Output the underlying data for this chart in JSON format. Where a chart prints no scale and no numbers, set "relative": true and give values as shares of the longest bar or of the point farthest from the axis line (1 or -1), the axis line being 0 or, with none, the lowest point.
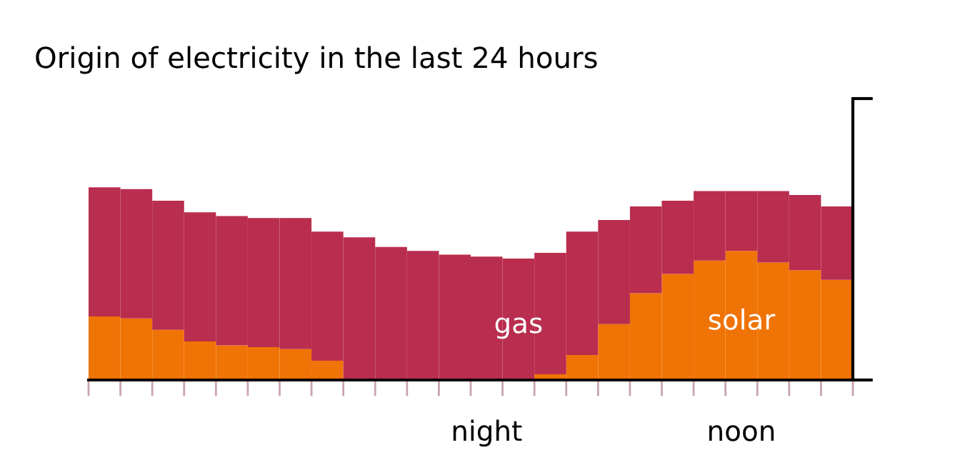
{
  "chart_data": {
    "type": "bar",
    "stacked": true,
    "relative": true,
    "title": "Origin of electricity in the last 24 hours",
    "categories": [
      null,
      null,
      null,
      null,
      null,
      null,
      null,
      null,
      null,
      null,
      null,
      null,
      "night",
      null,
      null,
      null,
      null,
      null,
      null,
      null,
      "noon",
      null,
      null,
      null
    ],
    "grid": false,
    "legend": false,
    "series": [
      {
        "name": "solar",
        "color": "#f07305",
        "values": [
          0.33,
          0.32,
          0.26,
          0.2,
          0.18,
          0.17,
          0.16,
          0.1,
          0,
          0,
          0,
          0,
          0,
          0,
          0.03,
          0.13,
          0.29,
          0.45,
          0.55,
          0.62,
          0.67,
          0.61,
          0.57,
          0.52
        ]
      },
      {
        "name": "gas",
        "color": "#b92d4e",
        "values": [
          0.67,
          0.67,
          0.67,
          0.67,
          0.67,
          0.67,
          0.68,
          0.67,
          0.74,
          0.69,
          0.67,
          0.65,
          0.64,
          0.63,
          0.63,
          0.64,
          0.54,
          0.45,
          0.38,
          0.36,
          0.31,
          0.37,
          0.39,
          0.38
        ]
      }
    ]
  }
}
